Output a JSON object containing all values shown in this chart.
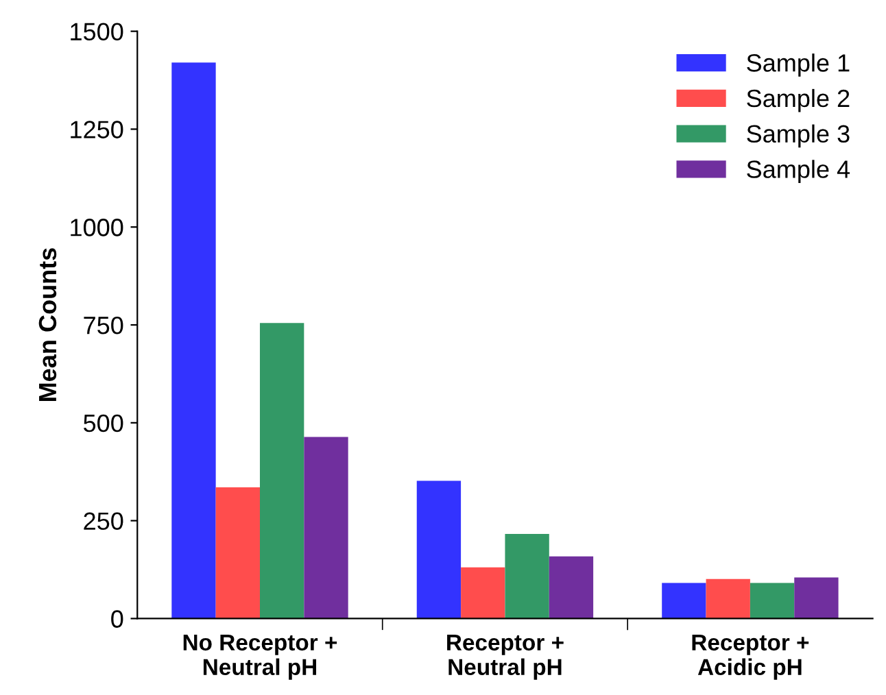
{
  "chart_data": {
    "type": "bar",
    "ylabel": "Mean Counts",
    "categories": [
      "No Receptor +\nNeutral pH",
      "Receptor +\nNeutral pH",
      "Receptor +\nAcidic pH"
    ],
    "series": [
      {
        "name": "Sample 1",
        "color": "#3333ff",
        "values": [
          1420,
          352,
          91
        ]
      },
      {
        "name": "Sample 2",
        "color": "#ff4d4d",
        "values": [
          335,
          131,
          101
        ]
      },
      {
        "name": "Sample 3",
        "color": "#339966",
        "values": [
          755,
          216,
          91
        ]
      },
      {
        "name": "Sample 4",
        "color": "#702f9e",
        "values": [
          464,
          159,
          105
        ]
      }
    ],
    "ylim": [
      0,
      1500
    ],
    "yticks": [
      0,
      250,
      500,
      750,
      1000,
      1250,
      1500
    ],
    "grid": false,
    "legend": "top right"
  }
}
